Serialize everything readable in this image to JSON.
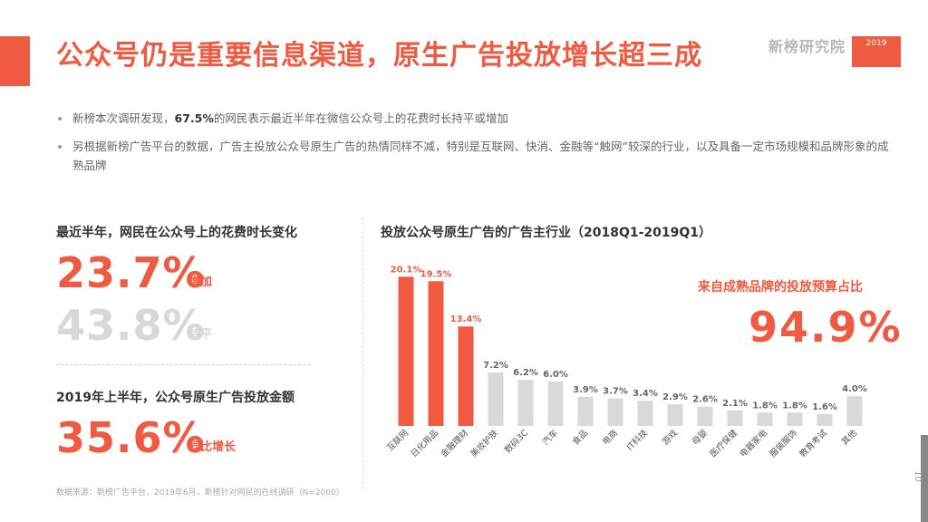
{
  "title": "公众号仍是重要信息渠道，原生广告投放增长超三成",
  "logo": {
    "name": "新榜研究院",
    "badge": "2019"
  },
  "bullets": [
    {
      "pre": "新榜本次调研发现，",
      "bold": "67.5%",
      "post": "的网民表示最近半年在微信公众号上的花费时长持平或增加"
    },
    {
      "pre": "另根据新榜广告平台的数据，广告主投放公众号原生广告的热情同样不减，特别是互联网、快消、金融等“触网”较深的行业，以及具备一定市场规模和品牌形象的成熟品牌",
      "bold": "",
      "post": ""
    }
  ],
  "left": {
    "heading1": "最近半年，网民在公众号上的花费时长变化",
    "stat1": {
      "value": "23.7%",
      "label": "增加"
    },
    "stat2": {
      "value": "43.8%",
      "label": "持平"
    },
    "heading2": "2019年上半年，公众号原生广告投放金额",
    "stat3": {
      "value": "35.6%",
      "label": "同比增长"
    }
  },
  "right": {
    "budget_label": "来自成熟品牌的投放预算占比",
    "budget_value": "94.9%"
  },
  "source": "数据来源：新榜广告平台，2019年6月，新榜针对网民的在线调研（N=2000）",
  "page_number": "10",
  "colors": {
    "accent": "#f05a40",
    "bar_gray": "#d9d9d9",
    "muted": "#d8d8d8"
  },
  "chart_data": {
    "type": "bar",
    "title": "投放公众号原生广告的广告主行业（2018Q1-2019Q1）",
    "categories": [
      "互联网",
      "日化用品",
      "金融理财",
      "美妆护肤",
      "数码3C",
      "汽车",
      "食品",
      "电商",
      "IT科技",
      "游戏",
      "母婴",
      "医疗保健",
      "电器家电",
      "服装服饰",
      "教育考试",
      "其他"
    ],
    "values": [
      20.1,
      19.5,
      13.4,
      7.2,
      6.2,
      6.0,
      3.9,
      3.7,
      3.4,
      2.9,
      2.6,
      2.1,
      1.8,
      1.8,
      1.6,
      4.0
    ],
    "labels": [
      "20.1%",
      "19.5%",
      "13.4%",
      "7.2%",
      "6.2%",
      "6.0%",
      "3.9%",
      "3.7%",
      "3.4%",
      "2.9%",
      "2.6%",
      "2.1%",
      "1.8%",
      "1.8%",
      "1.6%",
      "4.0%"
    ],
    "highlight_count": 3,
    "ylim": [
      0,
      21
    ],
    "grid": false
  }
}
